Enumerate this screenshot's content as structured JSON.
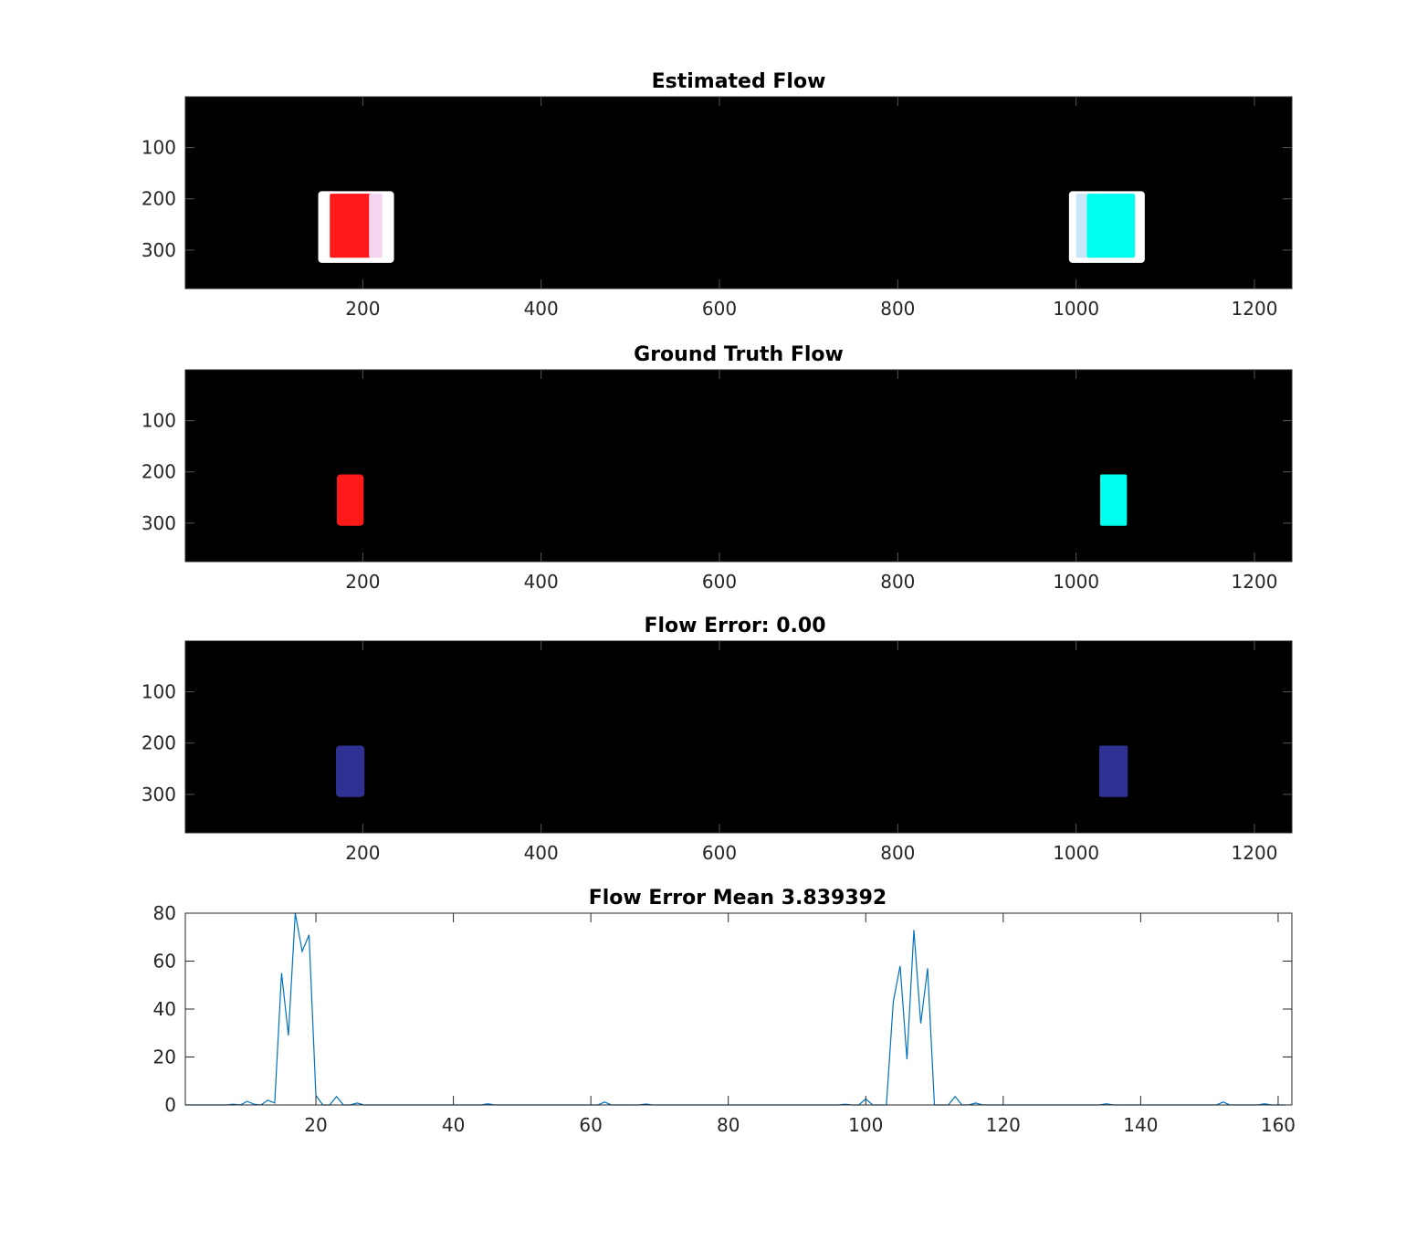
{
  "chart_data": [
    {
      "type": "heatmap",
      "title": "Estimated Flow",
      "x_ticks": [
        200,
        400,
        600,
        800,
        1000,
        1200
      ],
      "y_ticks": [
        100,
        200,
        300
      ],
      "xlim": [
        1,
        1242
      ],
      "ylim": [
        1,
        375
      ],
      "y_reversed": true,
      "background_color": "#000000",
      "regions": [
        {
          "x0": 150,
          "x1": 235,
          "y0": 185,
          "y1": 325,
          "color": "#ffffff"
        },
        {
          "x0": 163,
          "x1": 210,
          "y0": 190,
          "y1": 315,
          "color": "#ff1a1a"
        },
        {
          "x0": 207,
          "x1": 222,
          "y0": 190,
          "y1": 315,
          "color": "#f2d6ef"
        },
        {
          "x0": 992,
          "x1": 1077,
          "y0": 185,
          "y1": 325,
          "color": "#ffffff"
        },
        {
          "x0": 1012,
          "x1": 1066,
          "y0": 190,
          "y1": 315,
          "color": "#00ffee"
        },
        {
          "x0": 1000,
          "x1": 1012,
          "y0": 190,
          "y1": 315,
          "color": "#c9e6f7"
        }
      ]
    },
    {
      "type": "heatmap",
      "title": "Ground Truth Flow",
      "x_ticks": [
        200,
        400,
        600,
        800,
        1000,
        1200
      ],
      "y_ticks": [
        100,
        200,
        300
      ],
      "xlim": [
        1,
        1242
      ],
      "ylim": [
        1,
        375
      ],
      "y_reversed": true,
      "background_color": "#000000",
      "regions": [
        {
          "x0": 171,
          "x1": 201,
          "y0": 205,
          "y1": 305,
          "color": "#ff1a1a"
        },
        {
          "x0": 1027,
          "x1": 1057,
          "y0": 205,
          "y1": 305,
          "color": "#00ffee"
        }
      ]
    },
    {
      "type": "heatmap",
      "title": "Flow Error: 0.00",
      "x_ticks": [
        200,
        400,
        600,
        800,
        1000,
        1200
      ],
      "y_ticks": [
        100,
        200,
        300
      ],
      "xlim": [
        1,
        1242
      ],
      "ylim": [
        1,
        375
      ],
      "y_reversed": true,
      "background_color": "#000000",
      "regions": [
        {
          "x0": 170,
          "x1": 202,
          "y0": 205,
          "y1": 305,
          "color": "#2e3192"
        },
        {
          "x0": 1026,
          "x1": 1058,
          "y0": 205,
          "y1": 305,
          "color": "#2e3192"
        }
      ]
    },
    {
      "type": "line",
      "title": "Flow Error Mean 3.839392",
      "xlim": [
        1,
        162
      ],
      "ylim": [
        0,
        80
      ],
      "x_ticks": [
        20,
        40,
        60,
        80,
        100,
        120,
        140,
        160
      ],
      "y_ticks": [
        0,
        20,
        40,
        60,
        80
      ],
      "line_color": "#0072bd",
      "series": [
        {
          "x": [
            1,
            2,
            3,
            4,
            5,
            6,
            7,
            8,
            9,
            10,
            11,
            12,
            13,
            14,
            15,
            16,
            17,
            18,
            19,
            20,
            21,
            22,
            23,
            24,
            25,
            26,
            27,
            28,
            29,
            30,
            40,
            44,
            45,
            46,
            50,
            55,
            60,
            61,
            62,
            63,
            64,
            66,
            67,
            68,
            69,
            70,
            80,
            90,
            96,
            97,
            98,
            99,
            100,
            101,
            102,
            103,
            104,
            105,
            106,
            107,
            108,
            109,
            110,
            111,
            112,
            113,
            114,
            115,
            116,
            117,
            118,
            119,
            120,
            130,
            134,
            135,
            136,
            140,
            150,
            151,
            152,
            153,
            154,
            155,
            156,
            157,
            158,
            159,
            160,
            161
          ],
          "y": [
            0,
            0,
            0,
            0,
            0,
            0,
            0,
            0.3,
            0,
            1.5,
            0.3,
            0,
            2,
            0.8,
            55,
            29,
            82,
            64,
            71,
            4,
            0,
            0,
            3.5,
            0,
            0,
            0.8,
            0,
            0,
            0,
            0,
            0,
            0,
            0.5,
            0,
            0,
            0,
            0,
            0,
            1.2,
            0,
            0,
            0,
            0,
            0.4,
            0,
            0,
            0,
            0,
            0,
            0.3,
            0,
            0,
            2.5,
            0,
            0,
            0,
            43,
            58,
            19,
            73,
            34,
            57,
            0,
            0,
            0,
            3.5,
            0,
            0,
            0.8,
            0,
            0,
            0,
            0,
            0,
            0,
            0.5,
            0,
            0,
            0,
            0,
            1.2,
            0,
            0,
            0,
            0,
            0,
            0.5,
            0,
            0,
            0
          ]
        }
      ]
    }
  ]
}
